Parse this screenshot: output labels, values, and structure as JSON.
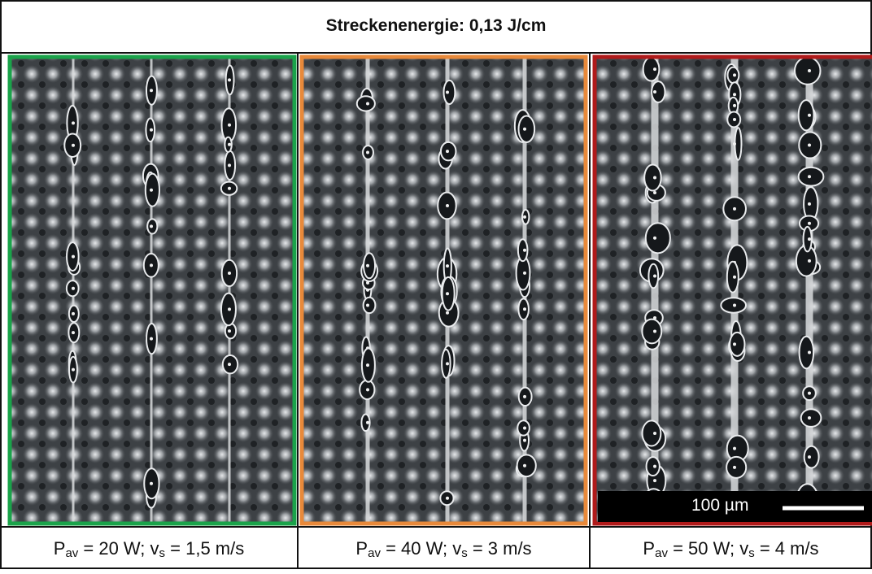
{
  "header": {
    "title": "Streckenenergie: 0,13 J/cm"
  },
  "panels": [
    {
      "caption": [
        "P",
        "av",
        " = 20 W; v",
        "s",
        " = 1,5 m/s"
      ]
    },
    {
      "caption": [
        "P",
        "av",
        " = 40 W; v",
        "s",
        " = 3 m/s"
      ]
    },
    {
      "caption": [
        "P",
        "av",
        " = 50 W; v",
        "s",
        " = 4 m/s"
      ]
    }
  ],
  "scale_bar": {
    "label": "100 µm"
  }
}
